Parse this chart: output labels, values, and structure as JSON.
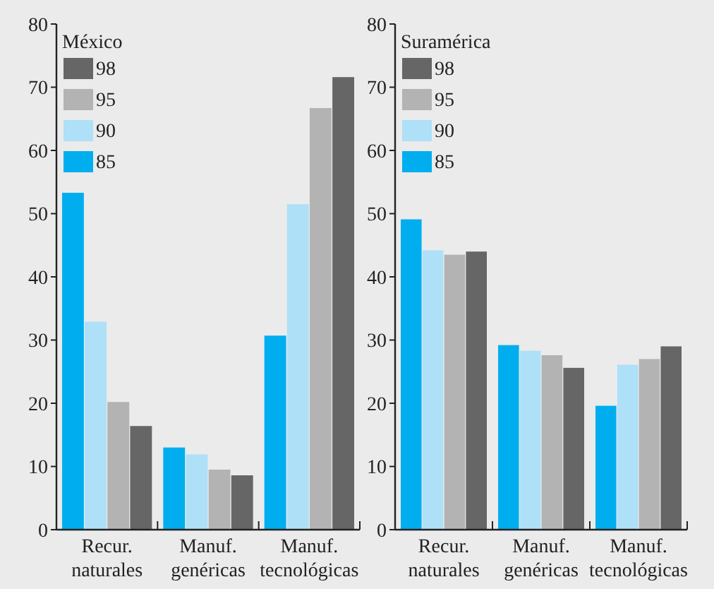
{
  "chart_data": [
    {
      "type": "bar",
      "legend_title": "México",
      "categories": [
        "Recur.\nnaturales",
        "Manuf.\ngenéricas",
        "Manuf.\ntecnológicas"
      ],
      "ylim": [
        0,
        80
      ],
      "yticks": [
        0,
        10,
        20,
        30,
        40,
        50,
        60,
        70,
        80
      ],
      "grid": false,
      "legend": "top left",
      "series": [
        {
          "name": "85",
          "color": "#00aeef",
          "values": [
            53.3,
            13.0,
            30.7
          ]
        },
        {
          "name": "90",
          "color": "#aee0f8",
          "values": [
            32.9,
            11.9,
            51.5
          ]
        },
        {
          "name": "95",
          "color": "#b3b3b3",
          "values": [
            20.2,
            9.5,
            66.7
          ]
        },
        {
          "name": "98",
          "color": "#666666",
          "values": [
            16.4,
            8.6,
            71.6
          ]
        }
      ]
    },
    {
      "type": "bar",
      "legend_title": "Suramérica",
      "categories": [
        "Recur.\nnaturales",
        "Manuf.\ngenéricas",
        "Manuf.\ntecnológicas"
      ],
      "ylim": [
        0,
        80
      ],
      "yticks": [
        0,
        10,
        20,
        30,
        40,
        50,
        60,
        70,
        80
      ],
      "grid": false,
      "legend": "top left",
      "series": [
        {
          "name": "85",
          "color": "#00aeef",
          "values": [
            49.1,
            29.2,
            19.6
          ]
        },
        {
          "name": "90",
          "color": "#aee0f8",
          "values": [
            44.2,
            28.3,
            26.1
          ]
        },
        {
          "name": "95",
          "color": "#b3b3b3",
          "values": [
            43.5,
            27.6,
            27.0
          ]
        },
        {
          "name": "98",
          "color": "#666666",
          "values": [
            44.0,
            25.6,
            29.0
          ]
        }
      ]
    }
  ]
}
